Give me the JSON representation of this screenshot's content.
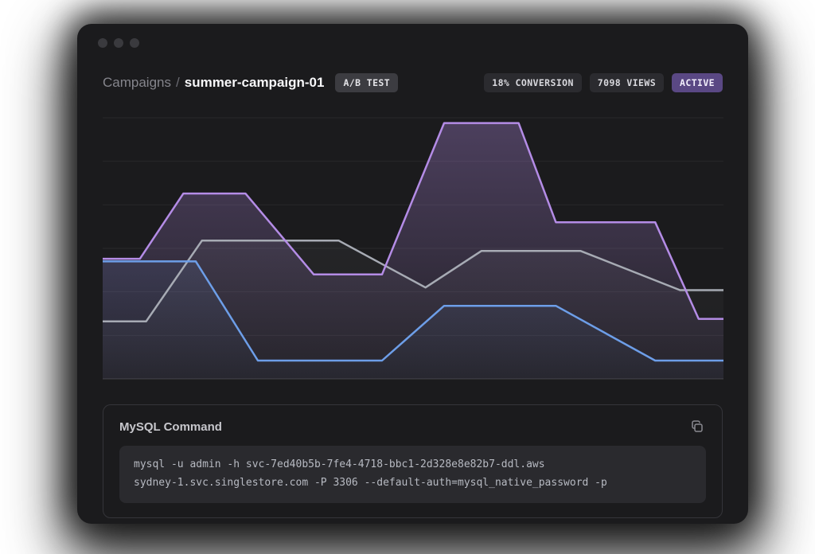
{
  "window": {
    "traffic_lights": [
      "close",
      "minimize",
      "maximize"
    ]
  },
  "header": {
    "breadcrumb_root": "Campaigns",
    "breadcrumb_separator": "/",
    "title": "summer-campaign-01",
    "ab_badge": "A/B TEST",
    "stats": [
      {
        "label": "18% CONVERSION",
        "variant": "default"
      },
      {
        "label": "7098 VIEWS",
        "variant": "default"
      },
      {
        "label": "ACTIVE",
        "variant": "accent"
      }
    ]
  },
  "chart_data": {
    "type": "area",
    "title": "",
    "xlabel": "",
    "ylabel": "",
    "x_range": [
      0,
      100
    ],
    "y_range": [
      0,
      100
    ],
    "grid": true,
    "gridlines": 7,
    "legend": "none",
    "series": [
      {
        "name": "purple",
        "color": "#b48ce6",
        "fill_top_opacity": 0.32,
        "fill_bottom_opacity": 0.05,
        "points": [
          [
            0,
            46
          ],
          [
            6,
            46
          ],
          [
            13,
            71
          ],
          [
            23,
            71
          ],
          [
            34,
            40
          ],
          [
            45,
            40
          ],
          [
            55,
            98
          ],
          [
            67,
            98
          ],
          [
            73,
            60
          ],
          [
            89,
            60
          ],
          [
            96,
            23
          ],
          [
            100,
            23
          ]
        ]
      },
      {
        "name": "gray",
        "color": "#a7abb4",
        "fill_top_opacity": 0.07,
        "fill_bottom_opacity": 0.02,
        "points": [
          [
            0,
            22
          ],
          [
            7,
            22
          ],
          [
            16,
            53
          ],
          [
            38,
            53
          ],
          [
            52,
            35
          ],
          [
            61,
            49
          ],
          [
            77,
            49
          ],
          [
            93,
            34
          ],
          [
            100,
            34
          ]
        ]
      },
      {
        "name": "blue",
        "color": "#6d9ee8",
        "fill_top_opacity": 0.1,
        "fill_bottom_opacity": 0.03,
        "points": [
          [
            0,
            45
          ],
          [
            15,
            45
          ],
          [
            25,
            7
          ],
          [
            45,
            7
          ],
          [
            55,
            28
          ],
          [
            73,
            28
          ],
          [
            89,
            7
          ],
          [
            100,
            7
          ]
        ]
      }
    ]
  },
  "mysql_card": {
    "title": "MySQL Command",
    "copy_icon": "copy-icon",
    "command_lines": [
      "mysql -u admin -h svc-7ed40b5b-7fe4-4718-bbc1-2d328e8e82b7-ddl.aws",
      "sydney-1.svc.singlestore.com -P 3306 --default-auth=mysql_native_password -p"
    ]
  },
  "colors": {
    "window_bg": "#1b1b1d",
    "badge_bg": "#3c3c41",
    "stat_badge_bg": "#2b2b2f",
    "active_badge_bg": "#5a4884",
    "purple_line": "#b48ce6",
    "gray_line": "#a7abb4",
    "blue_line": "#6d9ee8",
    "code_block_bg": "#2a2a2e"
  }
}
